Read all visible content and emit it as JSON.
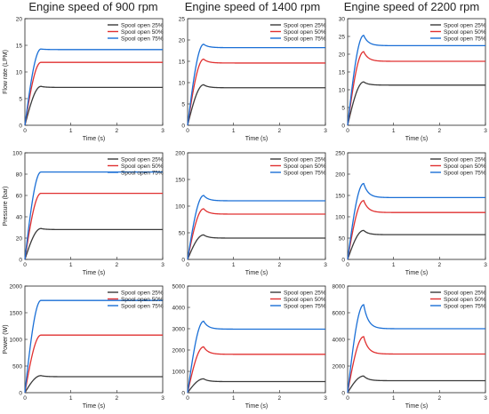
{
  "chart_data": {
    "type": "line",
    "column_titles": [
      "Engine speed of 900 rpm",
      "Engine speed of 1400 rpm",
      "Engine speed of 2200 rpm"
    ],
    "xlabel": "Time (s)",
    "xticks": [
      0,
      1,
      2,
      3
    ],
    "xlim": [
      0,
      3
    ],
    "row_ylabels": [
      "Flow rate (LPM)",
      "Pressure (bar)",
      "Power (W)"
    ],
    "legend": [
      "Spool open 25%",
      "Spool open 50%",
      "Spool open 75%"
    ],
    "legend_position": "top-right",
    "series_colors": [
      "#3a3a3a",
      "#e03030",
      "#1a6fd6"
    ],
    "panels": [
      {
        "row": 0,
        "col": 0,
        "ylim": [
          0,
          20
        ],
        "yticks": [
          0,
          5,
          10,
          15,
          20
        ],
        "series": [
          {
            "peak": 7.3,
            "steady": 7.1
          },
          {
            "peak": 11.8,
            "steady": 11.8
          },
          {
            "peak": 14.3,
            "steady": 14.2
          }
        ]
      },
      {
        "row": 0,
        "col": 1,
        "ylim": [
          0,
          25
        ],
        "yticks": [
          0,
          5,
          10,
          15,
          20,
          25
        ],
        "series": [
          {
            "peak": 9.5,
            "steady": 8.8
          },
          {
            "peak": 15.5,
            "steady": 14.6
          },
          {
            "peak": 19.0,
            "steady": 18.2
          }
        ]
      },
      {
        "row": 0,
        "col": 2,
        "ylim": [
          0,
          30
        ],
        "yticks": [
          0,
          5,
          10,
          15,
          20,
          25,
          30
        ],
        "series": [
          {
            "peak": 12.2,
            "steady": 11.3
          },
          {
            "peak": 20.7,
            "steady": 18.0
          },
          {
            "peak": 25.3,
            "steady": 22.4
          }
        ]
      },
      {
        "row": 1,
        "col": 0,
        "ylim": [
          0,
          100
        ],
        "yticks": [
          0,
          20,
          40,
          60,
          80,
          100
        ],
        "series": [
          {
            "peak": 29,
            "steady": 28
          },
          {
            "peak": 62,
            "steady": 62
          },
          {
            "peak": 82,
            "steady": 82
          }
        ]
      },
      {
        "row": 1,
        "col": 1,
        "ylim": [
          0,
          200
        ],
        "yticks": [
          0,
          50,
          100,
          150,
          200
        ],
        "series": [
          {
            "peak": 46,
            "steady": 40
          },
          {
            "peak": 95,
            "steady": 85
          },
          {
            "peak": 120,
            "steady": 110
          }
        ]
      },
      {
        "row": 1,
        "col": 2,
        "ylim": [
          0,
          250
        ],
        "yticks": [
          0,
          50,
          100,
          150,
          200,
          250
        ],
        "series": [
          {
            "peak": 68,
            "steady": 58
          },
          {
            "peak": 138,
            "steady": 110
          },
          {
            "peak": 178,
            "steady": 145
          }
        ]
      },
      {
        "row": 2,
        "col": 0,
        "ylim": [
          0,
          2000
        ],
        "yticks": [
          0,
          500,
          1000,
          1500,
          2000
        ],
        "series": [
          {
            "peak": 320,
            "steady": 300
          },
          {
            "peak": 1080,
            "steady": 1080
          },
          {
            "peak": 1730,
            "steady": 1730
          }
        ]
      },
      {
        "row": 2,
        "col": 1,
        "ylim": [
          0,
          5000
        ],
        "yticks": [
          0,
          1000,
          2000,
          3000,
          4000,
          5000
        ],
        "series": [
          {
            "peak": 650,
            "steady": 520
          },
          {
            "peak": 2150,
            "steady": 1800
          },
          {
            "peak": 3350,
            "steady": 2980
          }
        ]
      },
      {
        "row": 2,
        "col": 2,
        "ylim": [
          0,
          8000
        ],
        "yticks": [
          0,
          2000,
          4000,
          6000,
          8000
        ],
        "series": [
          {
            "peak": 1250,
            "steady": 900
          },
          {
            "peak": 4200,
            "steady": 2900
          },
          {
            "peak": 6600,
            "steady": 4800
          }
        ]
      }
    ]
  }
}
